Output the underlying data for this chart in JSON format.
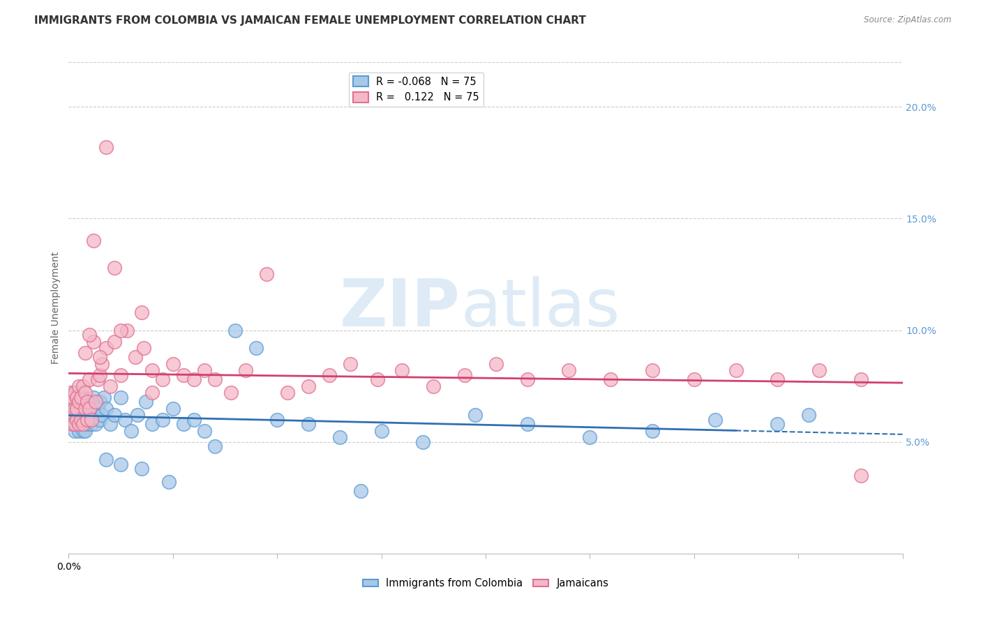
{
  "title": "IMMIGRANTS FROM COLOMBIA VS JAMAICAN FEMALE UNEMPLOYMENT CORRELATION CHART",
  "source": "Source: ZipAtlas.com",
  "ylabel": "Female Unemployment",
  "watermark_zip": "ZIP",
  "watermark_atlas": "atlas",
  "xlim": [
    0.0,
    0.4
  ],
  "ylim": [
    0.0,
    0.22
  ],
  "xticks": [
    0.0,
    0.05,
    0.1,
    0.15,
    0.2,
    0.25,
    0.3,
    0.35,
    0.4
  ],
  "xtick_labels_show": {
    "0.0": "0.0%"
  },
  "yticks_right": [
    0.05,
    0.1,
    0.15,
    0.2
  ],
  "ytick_labels_right": [
    "5.0%",
    "10.0%",
    "15.0%",
    "20.0%"
  ],
  "colombia_color": "#a8c8e8",
  "colombia_edge": "#5b9bd5",
  "jamaica_color": "#f4b8c8",
  "jamaica_edge": "#e07090",
  "trend_colombia_color": "#3070b0",
  "trend_jamaica_color": "#d04070",
  "background_color": "#ffffff",
  "grid_color": "#cccccc",
  "right_axis_color": "#5b9bd5",
  "title_fontsize": 11,
  "axis_label_fontsize": 10,
  "tick_fontsize": 10,
  "colombia_x": [
    0.001,
    0.001,
    0.002,
    0.002,
    0.002,
    0.003,
    0.003,
    0.003,
    0.003,
    0.004,
    0.004,
    0.004,
    0.004,
    0.005,
    0.005,
    0.005,
    0.005,
    0.005,
    0.006,
    0.006,
    0.006,
    0.007,
    0.007,
    0.007,
    0.007,
    0.008,
    0.008,
    0.008,
    0.009,
    0.009,
    0.01,
    0.01,
    0.011,
    0.012,
    0.012,
    0.013,
    0.014,
    0.015,
    0.015,
    0.016,
    0.017,
    0.018,
    0.02,
    0.022,
    0.025,
    0.027,
    0.03,
    0.033,
    0.037,
    0.04,
    0.045,
    0.05,
    0.055,
    0.06,
    0.065,
    0.07,
    0.08,
    0.09,
    0.1,
    0.115,
    0.13,
    0.15,
    0.17,
    0.195,
    0.22,
    0.25,
    0.28,
    0.31,
    0.34,
    0.355,
    0.018,
    0.025,
    0.035,
    0.048,
    0.14
  ],
  "colombia_y": [
    0.065,
    0.068,
    0.062,
    0.058,
    0.07,
    0.055,
    0.06,
    0.068,
    0.072,
    0.058,
    0.063,
    0.066,
    0.07,
    0.055,
    0.058,
    0.062,
    0.068,
    0.072,
    0.058,
    0.063,
    0.068,
    0.055,
    0.06,
    0.065,
    0.07,
    0.055,
    0.062,
    0.068,
    0.058,
    0.065,
    0.06,
    0.068,
    0.058,
    0.062,
    0.07,
    0.058,
    0.065,
    0.06,
    0.068,
    0.062,
    0.07,
    0.065,
    0.058,
    0.062,
    0.07,
    0.06,
    0.055,
    0.062,
    0.068,
    0.058,
    0.06,
    0.065,
    0.058,
    0.06,
    0.055,
    0.048,
    0.1,
    0.092,
    0.06,
    0.058,
    0.052,
    0.055,
    0.05,
    0.062,
    0.058,
    0.052,
    0.055,
    0.06,
    0.058,
    0.062,
    0.042,
    0.04,
    0.038,
    0.032,
    0.028
  ],
  "jamaica_x": [
    0.001,
    0.001,
    0.002,
    0.002,
    0.002,
    0.003,
    0.003,
    0.003,
    0.004,
    0.004,
    0.004,
    0.005,
    0.005,
    0.005,
    0.006,
    0.006,
    0.007,
    0.007,
    0.008,
    0.008,
    0.009,
    0.009,
    0.01,
    0.01,
    0.011,
    0.012,
    0.013,
    0.014,
    0.015,
    0.016,
    0.018,
    0.02,
    0.022,
    0.025,
    0.028,
    0.032,
    0.036,
    0.04,
    0.045,
    0.05,
    0.055,
    0.06,
    0.065,
    0.07,
    0.078,
    0.085,
    0.095,
    0.105,
    0.115,
    0.125,
    0.135,
    0.148,
    0.16,
    0.175,
    0.19,
    0.205,
    0.22,
    0.24,
    0.26,
    0.28,
    0.3,
    0.32,
    0.34,
    0.36,
    0.38,
    0.012,
    0.018,
    0.025,
    0.035,
    0.022,
    0.008,
    0.01,
    0.015,
    0.04,
    0.38
  ],
  "jamaica_y": [
    0.068,
    0.072,
    0.062,
    0.058,
    0.07,
    0.058,
    0.065,
    0.072,
    0.06,
    0.065,
    0.07,
    0.058,
    0.068,
    0.075,
    0.06,
    0.07,
    0.058,
    0.075,
    0.065,
    0.072,
    0.06,
    0.068,
    0.065,
    0.078,
    0.06,
    0.095,
    0.068,
    0.078,
    0.08,
    0.085,
    0.092,
    0.075,
    0.095,
    0.08,
    0.1,
    0.088,
    0.092,
    0.082,
    0.078,
    0.085,
    0.08,
    0.078,
    0.082,
    0.078,
    0.072,
    0.082,
    0.125,
    0.072,
    0.075,
    0.08,
    0.085,
    0.078,
    0.082,
    0.075,
    0.08,
    0.085,
    0.078,
    0.082,
    0.078,
    0.082,
    0.078,
    0.082,
    0.078,
    0.082,
    0.078,
    0.14,
    0.182,
    0.1,
    0.108,
    0.128,
    0.09,
    0.098,
    0.088,
    0.072,
    0.035
  ]
}
